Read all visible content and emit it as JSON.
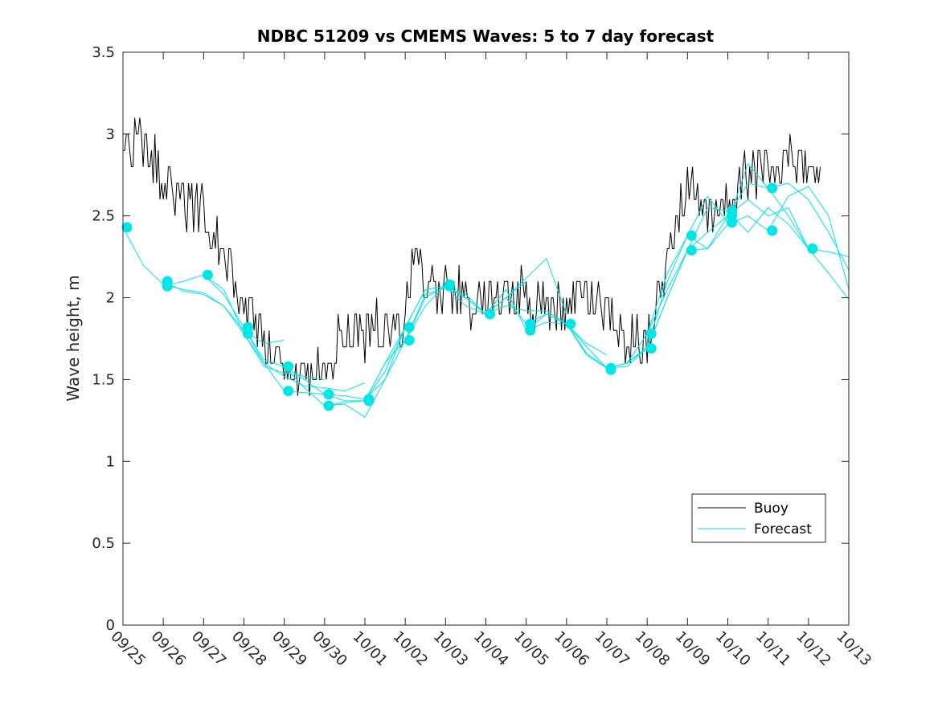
{
  "chart_data": {
    "type": "line",
    "title": "NDBC 51209 vs CMEMS Waves: 5 to 7 day forecast",
    "xlabel": "",
    "ylabel": "Wave height, m",
    "xlim": [
      0,
      18
    ],
    "ylim": [
      0,
      3.5
    ],
    "x_tick_labels": [
      "09/25",
      "09/26",
      "09/27",
      "09/28",
      "09/29",
      "09/30",
      "10/01",
      "10/02",
      "10/03",
      "10/04",
      "10/05",
      "10/06",
      "10/07",
      "10/08",
      "10/09",
      "10/10",
      "10/11",
      "10/12",
      "10/13"
    ],
    "y_ticks": [
      0,
      0.5,
      1,
      1.5,
      2,
      2.5,
      3,
      3.5
    ],
    "y_tick_labels": [
      "0",
      "0.5",
      "1",
      "1.5",
      "2",
      "2.5",
      "3",
      "3.5"
    ],
    "colors": {
      "buoy": "#000000",
      "forecast": "#00e6e6"
    },
    "legend": {
      "position": "bottom-right",
      "entries": [
        "Buoy",
        "Forecast"
      ]
    },
    "series": [
      {
        "name": "Buoy",
        "x": [
          0.0,
          0.5,
          0.95,
          1.5,
          2.0,
          2.5,
          3.0,
          3.5,
          4.0,
          4.5,
          5.0,
          5.5,
          6.0,
          6.5,
          7.0,
          7.2,
          7.5,
          8.0,
          8.5,
          9.0,
          9.5,
          10.0,
          10.5,
          11.0,
          11.5,
          12.0,
          12.5,
          13.0,
          13.5,
          14.0,
          14.5,
          15.0,
          15.5,
          16.0,
          16.5,
          17.0,
          17.3
        ],
        "y": [
          2.9,
          2.95,
          2.75,
          2.6,
          2.5,
          2.25,
          2.0,
          1.7,
          1.5,
          1.45,
          1.55,
          1.8,
          1.8,
          1.8,
          1.9,
          2.2,
          2.1,
          2.05,
          2.0,
          1.95,
          2.0,
          2.0,
          1.9,
          1.95,
          2.0,
          1.9,
          1.75,
          1.7,
          2.25,
          2.7,
          2.45,
          2.55,
          2.75,
          2.8,
          2.85,
          2.9,
          2.65
        ],
        "jitter": 0.1
      },
      {
        "name": "Forecast",
        "x": [
          0.0,
          0.5,
          1.0,
          1.5,
          2.0,
          2.5,
          3.0,
          3.5,
          4.0
        ],
        "y": [
          2.43,
          2.2,
          2.08,
          2.05,
          2.03,
          1.95,
          1.8,
          1.72,
          1.74
        ]
      },
      {
        "name": "Forecast",
        "x": [
          1.0,
          1.5,
          2.0,
          2.5,
          3.0,
          3.5,
          4.0,
          4.5,
          5.0
        ],
        "y": [
          2.1,
          2.04,
          2.02,
          1.95,
          1.78,
          1.58,
          1.54,
          1.52,
          1.5
        ]
      },
      {
        "name": "Forecast",
        "x": [
          1.0,
          1.5,
          2.0,
          2.5,
          3.0,
          3.5,
          4.0,
          4.5,
          5.0,
          5.5,
          6.0
        ],
        "y": [
          2.07,
          2.1,
          2.14,
          2.02,
          1.82,
          1.6,
          1.52,
          1.46,
          1.45,
          1.43,
          1.48
        ]
      },
      {
        "name": "Forecast",
        "x": [
          2.0,
          2.5,
          3.0,
          3.5,
          4.0,
          4.5,
          5.0,
          5.5,
          6.0,
          6.5,
          7.0
        ],
        "y": [
          2.14,
          2.05,
          1.78,
          1.6,
          1.43,
          1.42,
          1.41,
          1.4,
          1.38,
          1.5,
          1.82
        ]
      },
      {
        "name": "Forecast",
        "x": [
          3.0,
          3.5,
          4.0,
          4.5,
          5.0,
          5.5,
          6.0,
          6.5,
          7.0,
          7.5,
          8.0
        ],
        "y": [
          1.82,
          1.62,
          1.58,
          1.45,
          1.34,
          1.35,
          1.27,
          1.5,
          1.74,
          2.0,
          2.07
        ]
      },
      {
        "name": "Forecast",
        "x": [
          4.0,
          4.5,
          5.0,
          5.5,
          6.0,
          6.5,
          7.0,
          7.5,
          8.0,
          8.5,
          9.0
        ],
        "y": [
          1.58,
          1.5,
          1.41,
          1.37,
          1.37,
          1.55,
          1.82,
          2.05,
          2.07,
          2.0,
          1.9
        ]
      },
      {
        "name": "Forecast",
        "x": [
          5.0,
          5.5,
          6.0,
          6.5,
          7.0,
          7.5,
          8.0,
          8.5,
          9.0,
          9.5,
          10.0
        ],
        "y": [
          1.34,
          1.36,
          1.37,
          1.6,
          1.82,
          2.05,
          2.07,
          1.95,
          1.9,
          2.0,
          2.1
        ]
      },
      {
        "name": "Forecast",
        "x": [
          6.0,
          6.5,
          7.0,
          7.5,
          8.0,
          8.5,
          9.0,
          9.5,
          10.0,
          10.5,
          11.0
        ],
        "y": [
          1.37,
          1.6,
          1.74,
          1.95,
          2.08,
          2.0,
          1.9,
          2.0,
          2.12,
          2.24,
          1.9
        ]
      },
      {
        "name": "Forecast",
        "x": [
          7.0,
          7.5,
          8.0,
          8.5,
          9.0,
          9.5,
          10.0,
          10.5,
          11.0,
          11.5,
          12.0
        ],
        "y": [
          1.74,
          2.02,
          2.06,
          2.02,
          1.9,
          1.95,
          1.92,
          1.92,
          1.84,
          1.72,
          1.65
        ]
      },
      {
        "name": "Forecast",
        "x": [
          8.0,
          8.5,
          9.0,
          9.5,
          10.0,
          10.5,
          11.0,
          11.5,
          12.0,
          12.5,
          13.0
        ],
        "y": [
          2.07,
          2.0,
          1.9,
          2.05,
          1.8,
          1.85,
          1.84,
          1.7,
          1.57,
          1.58,
          1.69
        ]
      },
      {
        "name": "Forecast",
        "x": [
          9.0,
          9.5,
          10.0,
          10.5,
          11.0,
          11.5,
          12.0,
          12.5,
          13.0,
          13.5,
          14.0
        ],
        "y": [
          1.9,
          2.0,
          1.84,
          1.9,
          1.84,
          1.65,
          1.57,
          1.6,
          1.78,
          2.15,
          2.38
        ]
      },
      {
        "name": "Forecast",
        "x": [
          10.0,
          10.5,
          11.0,
          11.5,
          12.0,
          12.5,
          13.0,
          13.5,
          14.0,
          14.5,
          15.0
        ],
        "y": [
          1.8,
          1.9,
          1.84,
          1.66,
          1.57,
          1.6,
          1.69,
          2.0,
          2.29,
          2.55,
          2.53
        ]
      },
      {
        "name": "Forecast",
        "x": [
          11.0,
          11.5,
          12.0,
          12.5,
          13.0,
          13.5,
          14.0,
          14.5,
          15.0,
          15.5,
          16.0
        ],
        "y": [
          1.84,
          1.7,
          1.57,
          1.6,
          1.7,
          2.1,
          2.38,
          2.62,
          2.46,
          2.82,
          2.67
        ]
      },
      {
        "name": "Forecast",
        "x": [
          12.0,
          12.5,
          13.0,
          13.5,
          14.0,
          14.5,
          15.0,
          15.5,
          16.0,
          16.5,
          17.0
        ],
        "y": [
          1.57,
          1.6,
          1.78,
          2.05,
          2.29,
          2.4,
          2.5,
          2.6,
          2.5,
          2.55,
          2.3
        ]
      },
      {
        "name": "Forecast",
        "x": [
          13.0,
          13.5,
          14.0,
          14.5,
          15.0,
          15.5,
          16.0,
          16.5,
          17.0,
          17.5,
          18.0
        ],
        "y": [
          1.69,
          2.0,
          2.29,
          2.3,
          2.5,
          2.7,
          2.67,
          2.7,
          2.6,
          2.4,
          2.17
        ]
      },
      {
        "name": "Forecast",
        "x": [
          14.0,
          14.5,
          15.0,
          15.5,
          16.0,
          16.5,
          17.0,
          17.5,
          18.0
        ],
        "y": [
          2.38,
          2.3,
          2.45,
          2.5,
          2.41,
          2.62,
          2.68,
          2.5,
          2.05
        ]
      },
      {
        "name": "Forecast",
        "x": [
          15.0,
          15.5,
          16.0,
          16.5,
          17.0,
          17.5,
          18.0
        ],
        "y": [
          2.53,
          2.4,
          2.55,
          2.45,
          2.3,
          2.15,
          1.99
        ]
      },
      {
        "name": "Forecast",
        "x": [
          16.0,
          16.5,
          17.0,
          17.5,
          18.0
        ],
        "y": [
          2.67,
          2.5,
          2.3,
          2.28,
          2.25
        ]
      }
    ],
    "forecast_markers": [
      {
        "x": 0.1,
        "y": 2.43
      },
      {
        "x": 1.1,
        "y": 2.1
      },
      {
        "x": 1.1,
        "y": 2.07
      },
      {
        "x": 2.1,
        "y": 2.14
      },
      {
        "x": 3.1,
        "y": 1.82
      },
      {
        "x": 3.1,
        "y": 1.78
      },
      {
        "x": 4.1,
        "y": 1.58
      },
      {
        "x": 4.1,
        "y": 1.43
      },
      {
        "x": 5.1,
        "y": 1.41
      },
      {
        "x": 5.1,
        "y": 1.34
      },
      {
        "x": 6.1,
        "y": 1.38
      },
      {
        "x": 6.1,
        "y": 1.37
      },
      {
        "x": 7.1,
        "y": 1.82
      },
      {
        "x": 7.1,
        "y": 1.74
      },
      {
        "x": 8.1,
        "y": 2.08
      },
      {
        "x": 8.1,
        "y": 2.07
      },
      {
        "x": 9.1,
        "y": 1.9
      },
      {
        "x": 10.1,
        "y": 1.84
      },
      {
        "x": 10.1,
        "y": 1.8
      },
      {
        "x": 11.1,
        "y": 1.84
      },
      {
        "x": 12.1,
        "y": 1.57
      },
      {
        "x": 12.1,
        "y": 1.56
      },
      {
        "x": 13.1,
        "y": 1.78
      },
      {
        "x": 13.1,
        "y": 1.69
      },
      {
        "x": 14.1,
        "y": 2.38
      },
      {
        "x": 14.1,
        "y": 2.29
      },
      {
        "x": 15.1,
        "y": 2.53
      },
      {
        "x": 15.1,
        "y": 2.5
      },
      {
        "x": 15.1,
        "y": 2.46
      },
      {
        "x": 16.1,
        "y": 2.67
      },
      {
        "x": 16.1,
        "y": 2.41
      },
      {
        "x": 17.1,
        "y": 2.3
      }
    ]
  }
}
